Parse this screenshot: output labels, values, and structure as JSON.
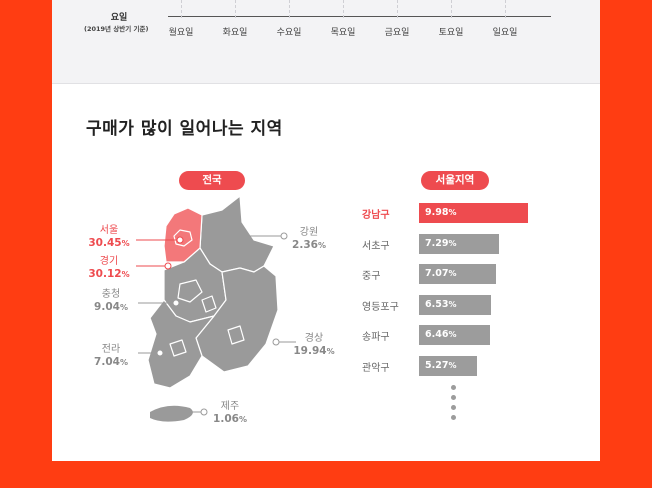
{
  "weekday_axis": {
    "title": "요일",
    "subtitle": "(2019년 상반기 기준)",
    "days": [
      "월요일",
      "화요일",
      "수요일",
      "목요일",
      "금요일",
      "토요일",
      "일요일"
    ]
  },
  "section_title": "구매가 많이 일어나는 지역",
  "colors": {
    "background": "#ff3d12",
    "accent": "#ee4b4f",
    "bar": "#9c9c9c",
    "map": "#9a9a9a"
  },
  "chart_data": [
    {
      "type": "map",
      "title": "전국",
      "regions": [
        {
          "name": "서울",
          "value": 30.45,
          "highlight": true
        },
        {
          "name": "경기",
          "value": 30.12,
          "highlight": true
        },
        {
          "name": "강원",
          "value": 2.36,
          "highlight": false
        },
        {
          "name": "충청",
          "value": 9.04,
          "highlight": false
        },
        {
          "name": "전라",
          "value": 7.04,
          "highlight": false
        },
        {
          "name": "경상",
          "value": 19.94,
          "highlight": false
        },
        {
          "name": "제주",
          "value": 1.06,
          "highlight": false
        }
      ],
      "unit": "%"
    },
    {
      "type": "bar",
      "orientation": "horizontal",
      "title": "서울지역",
      "categories": [
        "강남구",
        "서초구",
        "중구",
        "영등포구",
        "송파구",
        "관악구"
      ],
      "values": [
        9.98,
        7.29,
        7.07,
        6.53,
        6.46,
        5.27
      ],
      "highlight_index": 0,
      "unit": "%",
      "more_indicator": true
    }
  ]
}
